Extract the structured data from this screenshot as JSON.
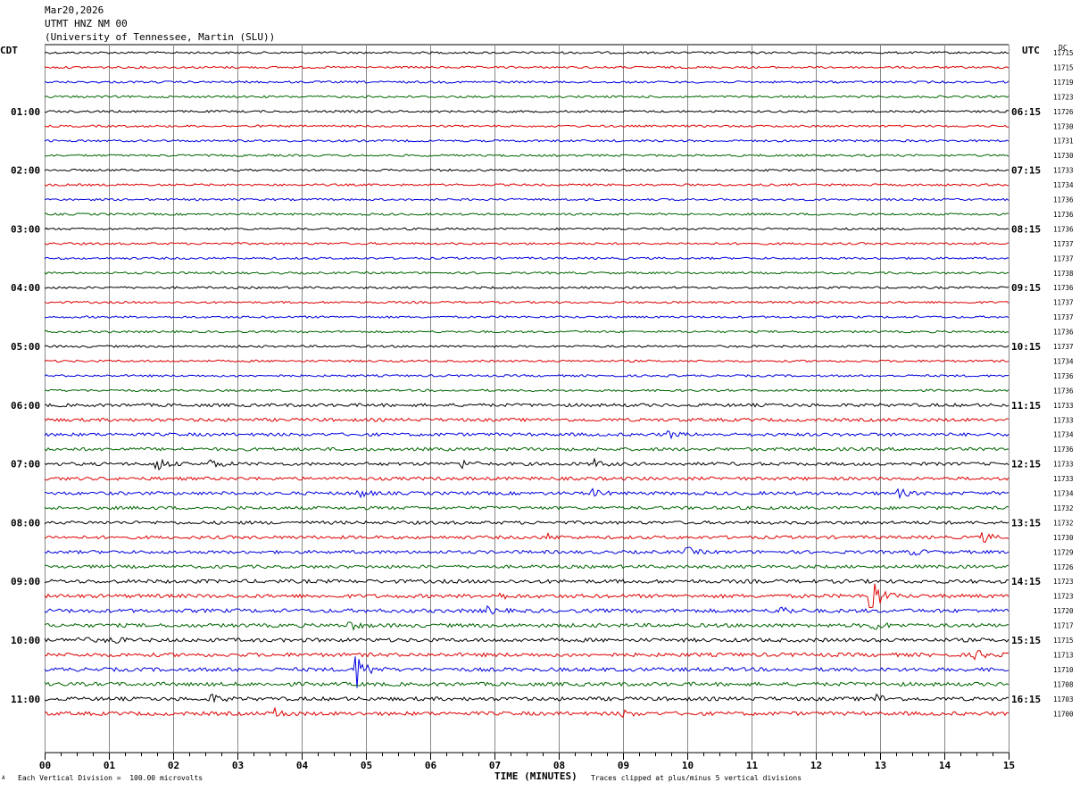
{
  "header": {
    "date": "Mar20,2026",
    "station": "UTMT HNZ NM 00",
    "institution": "(University of Tennessee, Martin (SLU))"
  },
  "left_zone": "CDT",
  "right_zone": "UTC",
  "dc_label": "DC",
  "footer": {
    "scale_note": "Each Vertical Division =  100.00 microvolts",
    "clip_note": "Traces clipped at plus/minus 5 vertical divisions",
    "mark": "A"
  },
  "colors": {
    "trace_cycle": [
      "#000000",
      "#dd0000",
      "#0000dd",
      "#006600"
    ],
    "grid": "#888888"
  },
  "chart_data": {
    "type": "line",
    "title": "",
    "xlabel": "TIME (MINUTES)",
    "xlim": [
      0,
      15
    ],
    "x_ticks": [
      "00",
      "01",
      "02",
      "03",
      "04",
      "05",
      "06",
      "07",
      "08",
      "09",
      "10",
      "11",
      "12",
      "13",
      "14",
      "15"
    ],
    "left_hour_labels": [
      "01:00",
      "02:00",
      "03:00",
      "04:00",
      "05:00",
      "06:00",
      "07:00",
      "08:00",
      "09:00",
      "10:00",
      "11:00"
    ],
    "right_hour_labels": [
      "06:15",
      "07:15",
      "08:15",
      "09:15",
      "10:15",
      "11:15",
      "12:15",
      "13:15",
      "14:15",
      "15:15",
      "16:15"
    ],
    "dc_values": [
      "11715",
      "11715",
      "11719",
      "11723",
      "11726",
      "11730",
      "11731",
      "11730",
      "11733",
      "11734",
      "11736",
      "11736",
      "11736",
      "11737",
      "11737",
      "11738",
      "11736",
      "11737",
      "11737",
      "11736",
      "11737",
      "11734",
      "11736",
      "11736",
      "11733",
      "11733",
      "11734",
      "11736",
      "11733",
      "11733",
      "11734",
      "11732",
      "11732",
      "11730",
      "11729",
      "11726",
      "11723",
      "11723",
      "11720",
      "11717",
      "11715",
      "11713",
      "11710",
      "11708",
      "11703",
      "11700"
    ],
    "events": [
      {
        "trace": 28,
        "minute": 1.75,
        "amplitude": 0.9
      },
      {
        "trace": 28,
        "minute": 2.6,
        "amplitude": 0.6
      },
      {
        "trace": 28,
        "minute": 6.5,
        "amplitude": 0.5
      },
      {
        "trace": 28,
        "minute": 8.55,
        "amplitude": 0.5
      },
      {
        "trace": 26,
        "minute": 9.7,
        "amplitude": 0.45
      },
      {
        "trace": 30,
        "minute": 4.9,
        "amplitude": 0.5
      },
      {
        "trace": 30,
        "minute": 8.55,
        "amplitude": 0.5
      },
      {
        "trace": 30,
        "minute": 13.3,
        "amplitude": 0.5
      },
      {
        "trace": 33,
        "minute": 14.6,
        "amplitude": 0.6
      },
      {
        "trace": 33,
        "minute": 7.8,
        "amplitude": 0.4
      },
      {
        "trace": 34,
        "minute": 10.0,
        "amplitude": 0.5
      },
      {
        "trace": 34,
        "minute": 13.5,
        "amplitude": 0.4
      },
      {
        "trace": 37,
        "minute": 12.85,
        "amplitude": 3.0
      },
      {
        "trace": 37,
        "minute": 7.0,
        "amplitude": 0.5
      },
      {
        "trace": 38,
        "minute": 11.45,
        "amplitude": 0.6
      },
      {
        "trace": 38,
        "minute": 6.9,
        "amplitude": 0.4
      },
      {
        "trace": 39,
        "minute": 4.75,
        "amplitude": 0.5
      },
      {
        "trace": 39,
        "minute": 12.9,
        "amplitude": 0.6
      },
      {
        "trace": 40,
        "minute": 1.0,
        "amplitude": 0.5
      },
      {
        "trace": 40,
        "minute": 0.5,
        "amplitude": 0.4
      },
      {
        "trace": 41,
        "minute": 14.5,
        "amplitude": 0.6
      },
      {
        "trace": 42,
        "minute": 4.85,
        "amplitude": 2.4
      },
      {
        "trace": 44,
        "minute": 2.6,
        "amplitude": 0.5
      },
      {
        "trace": 44,
        "minute": 12.95,
        "amplitude": 0.5
      },
      {
        "trace": 45,
        "minute": 3.6,
        "amplitude": 0.6
      },
      {
        "trace": 45,
        "minute": 9.0,
        "amplitude": 0.4
      }
    ]
  }
}
